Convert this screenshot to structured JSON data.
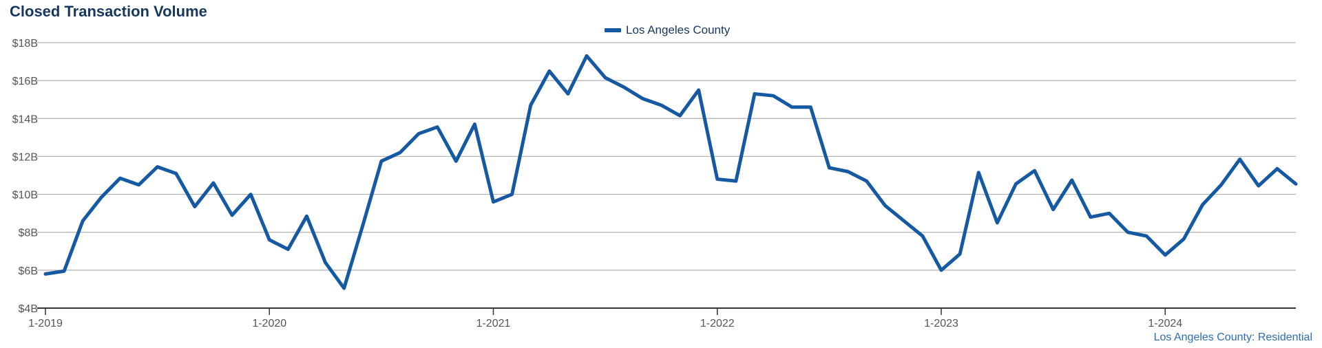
{
  "chart_data": {
    "type": "line",
    "title": "Closed Transaction Volume",
    "source_note": "Los Angeles County: Residential",
    "ylim": [
      4,
      18
    ],
    "y_unit": "billions USD",
    "yticks": [
      4,
      6,
      8,
      10,
      12,
      14,
      16,
      18
    ],
    "ytick_labels": [
      "$4B",
      "$6B",
      "$8B",
      "$10B",
      "$12B",
      "$14B",
      "$16B",
      "$18B"
    ],
    "xticks": [
      "2019-01",
      "2020-01",
      "2021-01",
      "2022-01",
      "2023-01",
      "2024-01"
    ],
    "xtick_labels": [
      "1-2019",
      "1-2020",
      "1-2021",
      "1-2022",
      "1-2023",
      "1-2024"
    ],
    "x_range": [
      "2019-01",
      "2024-08"
    ],
    "grid": true,
    "legend_position": "top-center",
    "colors": {
      "series": "#1559a3",
      "title": "#17375e",
      "grid": "#b0b0b0",
      "footer": "#2e6db4"
    },
    "x": [
      "2019-01",
      "2019-02",
      "2019-03",
      "2019-04",
      "2019-05",
      "2019-06",
      "2019-07",
      "2019-08",
      "2019-09",
      "2019-10",
      "2019-11",
      "2019-12",
      "2020-01",
      "2020-02",
      "2020-03",
      "2020-04",
      "2020-05",
      "2020-06",
      "2020-07",
      "2020-08",
      "2020-09",
      "2020-10",
      "2020-11",
      "2020-12",
      "2021-01",
      "2021-02",
      "2021-03",
      "2021-04",
      "2021-05",
      "2021-06",
      "2021-07",
      "2021-08",
      "2021-09",
      "2021-10",
      "2021-11",
      "2021-12",
      "2022-01",
      "2022-02",
      "2022-03",
      "2022-04",
      "2022-05",
      "2022-06",
      "2022-07",
      "2022-08",
      "2022-09",
      "2022-10",
      "2022-11",
      "2022-12",
      "2023-01",
      "2023-02",
      "2023-03",
      "2023-04",
      "2023-05",
      "2023-06",
      "2023-07",
      "2023-08",
      "2023-09",
      "2023-10",
      "2023-11",
      "2023-12",
      "2024-01",
      "2024-02",
      "2024-03",
      "2024-04",
      "2024-05",
      "2024-06",
      "2024-07",
      "2024-08"
    ],
    "series": [
      {
        "name": "Los Angeles County",
        "values": [
          5.8,
          5.95,
          8.6,
          9.85,
          10.85,
          10.5,
          11.45,
          11.1,
          9.35,
          10.6,
          8.9,
          10.0,
          7.6,
          7.1,
          8.85,
          6.4,
          5.05,
          8.35,
          11.75,
          12.2,
          13.2,
          13.55,
          11.75,
          13.7,
          9.6,
          10.0,
          14.7,
          16.5,
          15.3,
          17.3,
          16.15,
          15.65,
          15.05,
          14.7,
          14.15,
          15.5,
          10.8,
          10.7,
          15.3,
          15.2,
          14.6,
          14.6,
          11.4,
          11.2,
          10.7,
          9.4,
          8.6,
          7.8,
          6.0,
          6.85,
          11.15,
          8.5,
          10.55,
          11.25,
          9.2,
          10.75,
          8.8,
          9.0,
          8.0,
          7.8,
          6.8,
          7.65,
          9.45,
          10.5,
          11.85,
          10.45,
          11.35,
          10.55
        ]
      }
    ]
  }
}
